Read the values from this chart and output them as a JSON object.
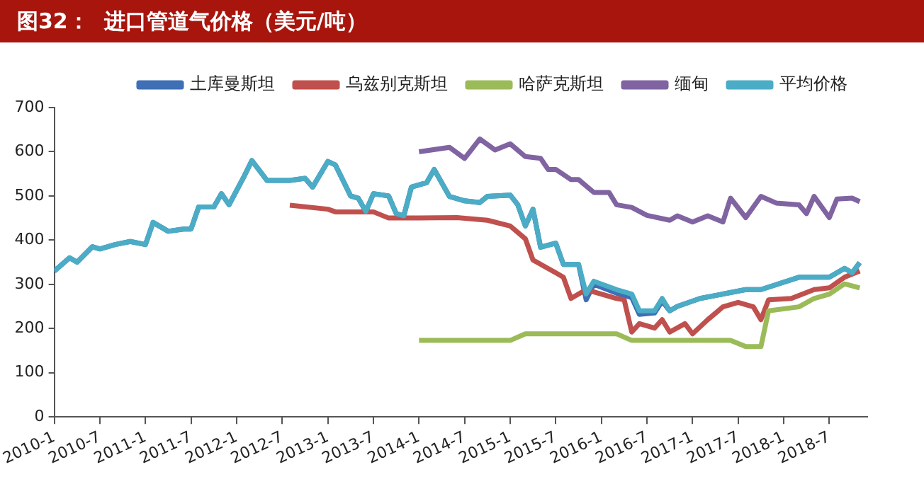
{
  "chart_data": {
    "type": "line",
    "title": "图32：  进口管道气价格（美元/吨）",
    "xlim": [
      "2010-01",
      "2018-12"
    ],
    "xticks": [
      {
        "value": "2010-01",
        "label": "2010-1"
      },
      {
        "value": "2010-07",
        "label": "2010-7"
      },
      {
        "value": "2011-01",
        "label": "2011-1"
      },
      {
        "value": "2011-07",
        "label": "2011-7"
      },
      {
        "value": "2012-01",
        "label": "2012-1"
      },
      {
        "value": "2012-07",
        "label": "2012-7"
      },
      {
        "value": "2013-01",
        "label": "2013-1"
      },
      {
        "value": "2013-07",
        "label": "2013-7"
      },
      {
        "value": "2014-01",
        "label": "2014-1"
      },
      {
        "value": "2014-07",
        "label": "2014-7"
      },
      {
        "value": "2015-01",
        "label": "2015-1"
      },
      {
        "value": "2015-07",
        "label": "2015-7"
      },
      {
        "value": "2016-01",
        "label": "2016-1"
      },
      {
        "value": "2016-07",
        "label": "2016-7"
      },
      {
        "value": "2017-01",
        "label": "2017-1"
      },
      {
        "value": "2017-07",
        "label": "2017-7"
      },
      {
        "value": "2018-01",
        "label": "2018-1"
      },
      {
        "value": "2018-07",
        "label": "2018-7"
      }
    ],
    "ylim": [
      0,
      700
    ],
    "yticks": [
      0,
      100,
      200,
      300,
      400,
      500,
      600,
      700
    ],
    "grid": false,
    "legend": "top",
    "series": [
      {
        "name": "土库曼斯坦",
        "color": "#3f6fb5",
        "x": [
          "2010-01",
          "2010-03",
          "2010-04",
          "2010-06",
          "2010-07",
          "2010-09",
          "2010-11",
          "2011-01",
          "2011-02",
          "2011-04",
          "2011-06",
          "2011-07",
          "2011-08",
          "2011-10",
          "2011-11",
          "2011-12",
          "2012-02",
          "2012-03",
          "2012-05",
          "2012-08",
          "2012-10",
          "2012-11",
          "2013-01",
          "2013-02",
          "2013-04",
          "2013-05",
          "2013-06",
          "2013-07",
          "2013-09",
          "2013-10",
          "2013-11",
          "2013-12",
          "2014-02",
          "2014-03",
          "2014-05",
          "2014-07",
          "2014-09",
          "2014-10",
          "2015-01",
          "2015-02",
          "2015-03",
          "2015-04",
          "2015-05",
          "2015-07",
          "2015-08",
          "2015-10",
          "2015-11",
          "2015-12",
          "2016-03",
          "2016-05",
          "2016-06",
          "2016-08",
          "2016-09",
          "2016-10",
          "2016-11",
          "2017-02",
          "2017-05",
          "2017-08",
          "2017-10",
          "2018-03",
          "2018-06",
          "2018-07",
          "2018-09",
          "2018-10",
          "2018-11"
        ],
        "values": [
          330,
          360,
          350,
          385,
          380,
          390,
          397,
          390,
          440,
          420,
          425,
          425,
          475,
          475,
          505,
          480,
          545,
          580,
          535,
          535,
          540,
          520,
          578,
          570,
          500,
          495,
          465,
          505,
          500,
          460,
          455,
          520,
          530,
          560,
          499,
          489,
          485,
          499,
          502,
          480,
          432,
          470,
          384,
          393,
          345,
          345,
          265,
          300,
          280,
          270,
          232,
          235,
          262,
          240,
          250,
          268,
          278,
          288,
          288,
          316,
          316,
          316,
          336,
          326,
          349
        ]
      },
      {
        "name": "乌兹别克斯坦",
        "color": "#c0504d",
        "x": [
          "2012-08",
          "2013-01",
          "2013-02",
          "2013-07",
          "2013-09",
          "2014-01",
          "2014-06",
          "2014-10",
          "2015-01",
          "2015-03",
          "2015-04",
          "2015-07",
          "2015-08",
          "2015-09",
          "2015-11",
          "2016-01",
          "2016-03",
          "2016-04",
          "2016-05",
          "2016-06",
          "2016-08",
          "2016-09",
          "2016-10",
          "2016-12",
          "2017-01",
          "2017-03",
          "2017-05",
          "2017-07",
          "2017-09",
          "2017-10",
          "2017-11",
          "2018-02",
          "2018-05",
          "2018-07",
          "2018-09",
          "2018-11"
        ],
        "values": [
          479,
          470,
          464,
          464,
          450,
          450,
          451,
          445,
          432,
          403,
          355,
          326,
          316,
          268,
          288,
          278,
          268,
          265,
          192,
          211,
          201,
          220,
          192,
          211,
          188,
          220,
          249,
          259,
          249,
          220,
          265,
          268,
          288,
          292,
          316,
          330
        ]
      },
      {
        "name": "哈萨克斯坦",
        "color": "#9bbb59",
        "x": [
          "2014-01",
          "2015-01",
          "2015-03",
          "2016-03",
          "2016-05",
          "2017-06",
          "2017-08",
          "2017-10",
          "2017-11",
          "2018-03",
          "2018-05",
          "2018-07",
          "2018-09",
          "2018-11"
        ],
        "values": [
          173,
          173,
          188,
          188,
          173,
          173,
          159,
          159,
          240,
          249,
          268,
          278,
          301,
          292
        ]
      },
      {
        "name": "缅甸",
        "color": "#8064a2",
        "x": [
          "2014-01",
          "2014-05",
          "2014-07",
          "2014-09",
          "2014-11",
          "2015-01",
          "2015-03",
          "2015-05",
          "2015-06",
          "2015-07",
          "2015-09",
          "2015-10",
          "2015-12",
          "2016-02",
          "2016-03",
          "2016-05",
          "2016-07",
          "2016-10",
          "2016-11",
          "2017-01",
          "2017-03",
          "2017-05",
          "2017-06",
          "2017-08",
          "2017-10",
          "2017-12",
          "2018-03",
          "2018-04",
          "2018-05",
          "2018-07",
          "2018-08",
          "2018-10",
          "2018-11"
        ],
        "values": [
          600,
          610,
          585,
          629,
          604,
          618,
          589,
          585,
          560,
          560,
          537,
          537,
          508,
          508,
          480,
          474,
          456,
          445,
          455,
          441,
          455,
          441,
          495,
          451,
          499,
          484,
          480,
          460,
          499,
          451,
          493,
          495,
          487
        ]
      },
      {
        "name": "平均价格",
        "color": "#4bacc6",
        "x": [
          "2010-01",
          "2010-03",
          "2010-04",
          "2010-06",
          "2010-07",
          "2010-09",
          "2010-11",
          "2011-01",
          "2011-02",
          "2011-04",
          "2011-06",
          "2011-07",
          "2011-08",
          "2011-10",
          "2011-11",
          "2011-12",
          "2012-02",
          "2012-03",
          "2012-05",
          "2012-08",
          "2012-10",
          "2012-11",
          "2013-01",
          "2013-02",
          "2013-04",
          "2013-05",
          "2013-06",
          "2013-07",
          "2013-09",
          "2013-10",
          "2013-11",
          "2013-12",
          "2014-02",
          "2014-03",
          "2014-05",
          "2014-07",
          "2014-09",
          "2014-10",
          "2015-01",
          "2015-02",
          "2015-03",
          "2015-04",
          "2015-05",
          "2015-07",
          "2015-08",
          "2015-10",
          "2015-11",
          "2015-12",
          "2016-03",
          "2016-05",
          "2016-06",
          "2016-08",
          "2016-09",
          "2016-10",
          "2016-11",
          "2017-02",
          "2017-05",
          "2017-08",
          "2017-10",
          "2018-03",
          "2018-06",
          "2018-07",
          "2018-09",
          "2018-10",
          "2018-11"
        ],
        "values": [
          330,
          360,
          350,
          385,
          380,
          390,
          397,
          390,
          440,
          420,
          425,
          425,
          475,
          475,
          505,
          480,
          545,
          580,
          535,
          535,
          540,
          520,
          578,
          570,
          500,
          495,
          465,
          505,
          500,
          460,
          455,
          520,
          530,
          560,
          499,
          489,
          485,
          499,
          502,
          480,
          432,
          470,
          384,
          393,
          345,
          345,
          278,
          307,
          288,
          278,
          240,
          240,
          268,
          240,
          250,
          268,
          278,
          288,
          288,
          316,
          316,
          316,
          336,
          326,
          349
        ]
      }
    ]
  }
}
